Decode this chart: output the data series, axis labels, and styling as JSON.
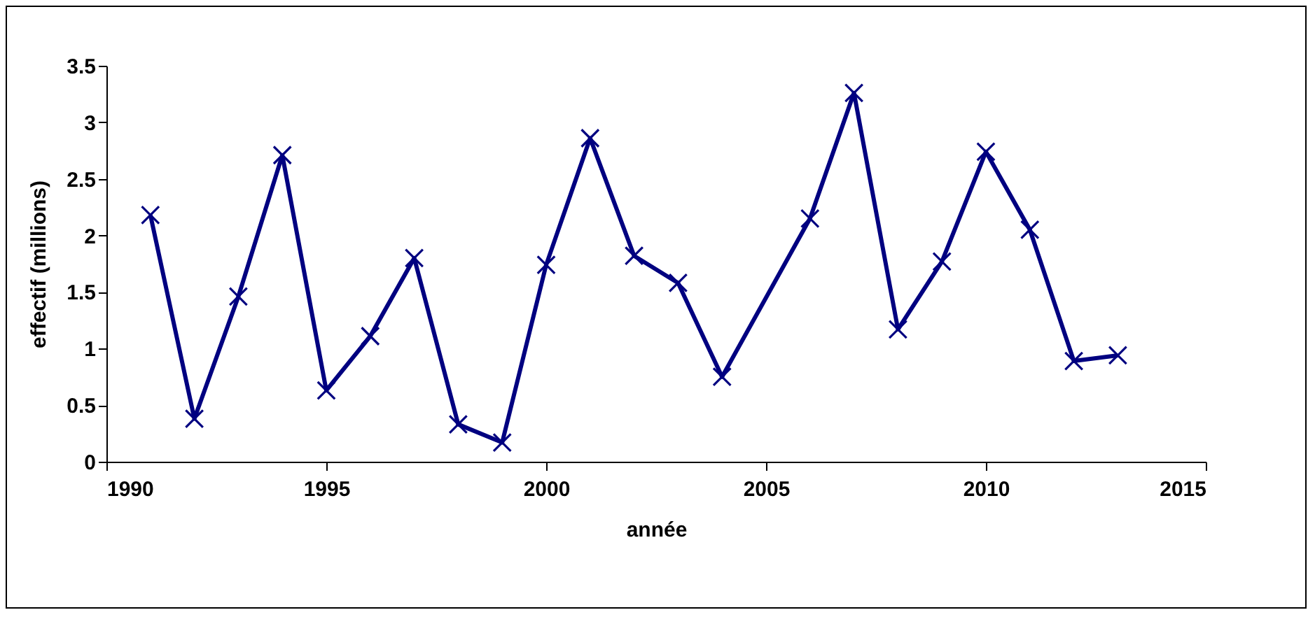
{
  "chart_data": {
    "type": "line",
    "xlabel": "année",
    "ylabel": "effectif (millions)",
    "x": [
      1991,
      1992,
      1993,
      1994,
      1995,
      1996,
      1997,
      1998,
      1999,
      2000,
      2001,
      2002,
      2003,
      2004,
      2006,
      2007,
      2008,
      2009,
      2010,
      2011,
      2012,
      2013
    ],
    "series": [
      {
        "color": "#000080",
        "values": [
          2.18,
          0.38,
          1.46,
          2.71,
          0.63,
          1.11,
          1.8,
          0.33,
          0.17,
          1.74,
          2.86,
          1.82,
          1.58,
          0.75,
          2.15,
          3.26,
          1.17,
          1.77,
          2.74,
          2.05,
          0.89,
          0.94
        ]
      }
    ],
    "xlim": [
      1990,
      2015
    ],
    "xticks": [
      1990,
      1995,
      2000,
      2005,
      2010,
      2015
    ],
    "ylim": [
      0,
      3.5
    ],
    "yticks": [
      0,
      0.5,
      1,
      1.5,
      2,
      2.5,
      3,
      3.5
    ],
    "grid": false,
    "marker": "cross",
    "line_style": "solid"
  }
}
